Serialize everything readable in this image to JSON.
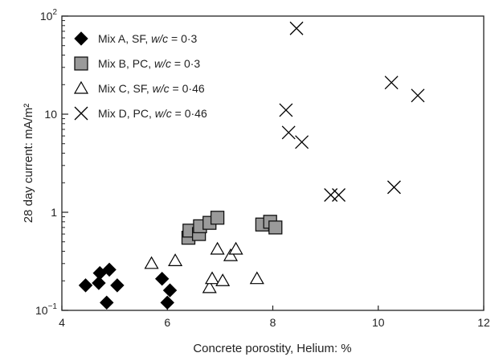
{
  "chart_data": {
    "type": "scatter",
    "title": "",
    "xlabel": "Concrete porostity, Helium: %",
    "ylabel": "28 day current: mA/m²",
    "xlim": [
      4,
      12
    ],
    "ylim": [
      0.1,
      100
    ],
    "yscale": "log",
    "x_ticks": [
      4,
      6,
      8,
      10,
      12
    ],
    "y_ticks": [
      {
        "value": 0.1,
        "base": "10",
        "exp": "−1"
      },
      {
        "value": 1,
        "label": "1"
      },
      {
        "value": 10,
        "label": "10"
      },
      {
        "value": 100,
        "base": "10",
        "exp": "2"
      }
    ],
    "grid": false,
    "legend_position": "top-left",
    "series": [
      {
        "name_prefix": "Mix A, SF, ",
        "name_var": "w/c",
        "name_suffix": " = 0·3",
        "marker": "diamond",
        "color": "#000000",
        "points": [
          [
            4.45,
            0.18
          ],
          [
            4.7,
            0.19
          ],
          [
            4.72,
            0.24
          ],
          [
            4.85,
            0.12
          ],
          [
            4.9,
            0.26
          ],
          [
            5.05,
            0.18
          ],
          [
            5.9,
            0.21
          ],
          [
            6.0,
            0.12
          ],
          [
            6.05,
            0.16
          ]
        ]
      },
      {
        "name_prefix": "Mix B, PC, ",
        "name_var": "w/c",
        "name_suffix": " = 0·3",
        "marker": "square",
        "color": "#9a9a9a",
        "points": [
          [
            6.4,
            0.55
          ],
          [
            6.42,
            0.65
          ],
          [
            6.6,
            0.6
          ],
          [
            6.62,
            0.72
          ],
          [
            6.8,
            0.78
          ],
          [
            6.95,
            0.88
          ],
          [
            7.8,
            0.75
          ],
          [
            7.95,
            0.8
          ],
          [
            8.05,
            0.7
          ]
        ]
      },
      {
        "name_prefix": "Mix C, SF, ",
        "name_var": "w/c",
        "name_suffix": " = 0·46",
        "marker": "triangle",
        "color": "#000000",
        "points": [
          [
            5.7,
            0.3
          ],
          [
            6.15,
            0.32
          ],
          [
            6.8,
            0.17
          ],
          [
            6.85,
            0.21
          ],
          [
            6.95,
            0.42
          ],
          [
            7.05,
            0.2
          ],
          [
            7.2,
            0.36
          ],
          [
            7.3,
            0.42
          ],
          [
            7.7,
            0.21
          ]
        ]
      },
      {
        "name_prefix": "Mix D, PC, ",
        "name_var": "w/c",
        "name_suffix": " = 0·46",
        "marker": "x",
        "color": "#000000",
        "points": [
          [
            8.25,
            11
          ],
          [
            8.3,
            6.5
          ],
          [
            8.45,
            75
          ],
          [
            8.55,
            5.2
          ],
          [
            9.1,
            1.5
          ],
          [
            9.25,
            1.5
          ],
          [
            10.25,
            21
          ],
          [
            10.3,
            1.8
          ],
          [
            10.75,
            15.5
          ]
        ]
      }
    ]
  }
}
